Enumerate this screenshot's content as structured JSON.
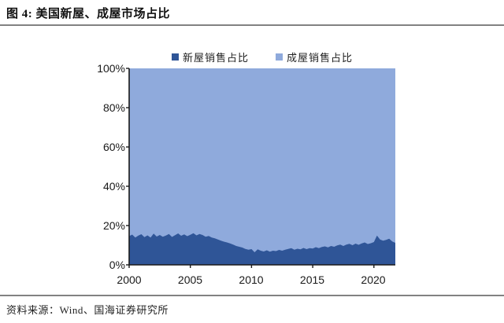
{
  "figure": {
    "title": "图 4: 美国新屋、成屋市场占比",
    "source": "资料来源：Wind、国海证券研究所"
  },
  "palette": {
    "new_home_fill": "#2F5597",
    "existing_home_fill": "#8FAADC",
    "axis": "#1a1a1a",
    "divider": "#828282",
    "text": "#111111"
  },
  "chart_data": {
    "type": "area",
    "stacked": true,
    "stack_total_percent": 100,
    "title": "",
    "xlabel": "",
    "ylabel": "",
    "ylim": [
      0,
      100
    ],
    "grid": false,
    "legend_position": "top-center",
    "x_start": 2000.0,
    "x_step": 0.25,
    "x_end": 2021.75,
    "x_tick_years": [
      2000,
      2005,
      2010,
      2015,
      2020
    ],
    "x_tick_labels": [
      "2000",
      "2005",
      "2010",
      "2015",
      "2020"
    ],
    "y_tick_values_top_to_bottom": [
      100,
      80,
      60,
      40,
      20,
      0
    ],
    "y_tick_labels_top_to_bottom": [
      "100%",
      "80%",
      "60%",
      "40%",
      "20%",
      "0%"
    ],
    "series": [
      {
        "name": "新屋销售占比",
        "color": "#2F5597",
        "unit": "%",
        "values": [
          14.6,
          15.4,
          13.9,
          14.9,
          15.6,
          14.1,
          15.0,
          13.9,
          15.9,
          14.4,
          15.2,
          14.3,
          14.9,
          15.7,
          14.2,
          15.1,
          16.0,
          14.8,
          15.5,
          14.6,
          15.3,
          16.1,
          15.0,
          15.7,
          15.2,
          14.3,
          14.7,
          13.9,
          13.5,
          12.9,
          12.3,
          11.8,
          11.4,
          10.9,
          10.3,
          9.6,
          9.2,
          8.8,
          8.1,
          7.7,
          8.0,
          6.4,
          7.9,
          7.2,
          6.8,
          7.4,
          6.7,
          7.2,
          7.0,
          7.6,
          7.2,
          7.7,
          8.1,
          8.5,
          7.7,
          8.2,
          7.9,
          8.6,
          8.0,
          8.5,
          8.3,
          9.0,
          8.5,
          9.1,
          9.4,
          8.9,
          9.6,
          9.2,
          9.9,
          10.3,
          9.6,
          10.3,
          10.7,
          10.0,
          10.8,
          10.2,
          10.9,
          11.4,
          10.6,
          11.0,
          11.6,
          14.9,
          12.9,
          12.3,
          12.7,
          13.3,
          11.9,
          11.2
        ]
      },
      {
        "name": "成屋销售占比",
        "color": "#8FAADC",
        "unit": "%",
        "derived": "100 minus 新屋销售占比 (stacked to 100%)"
      }
    ]
  }
}
